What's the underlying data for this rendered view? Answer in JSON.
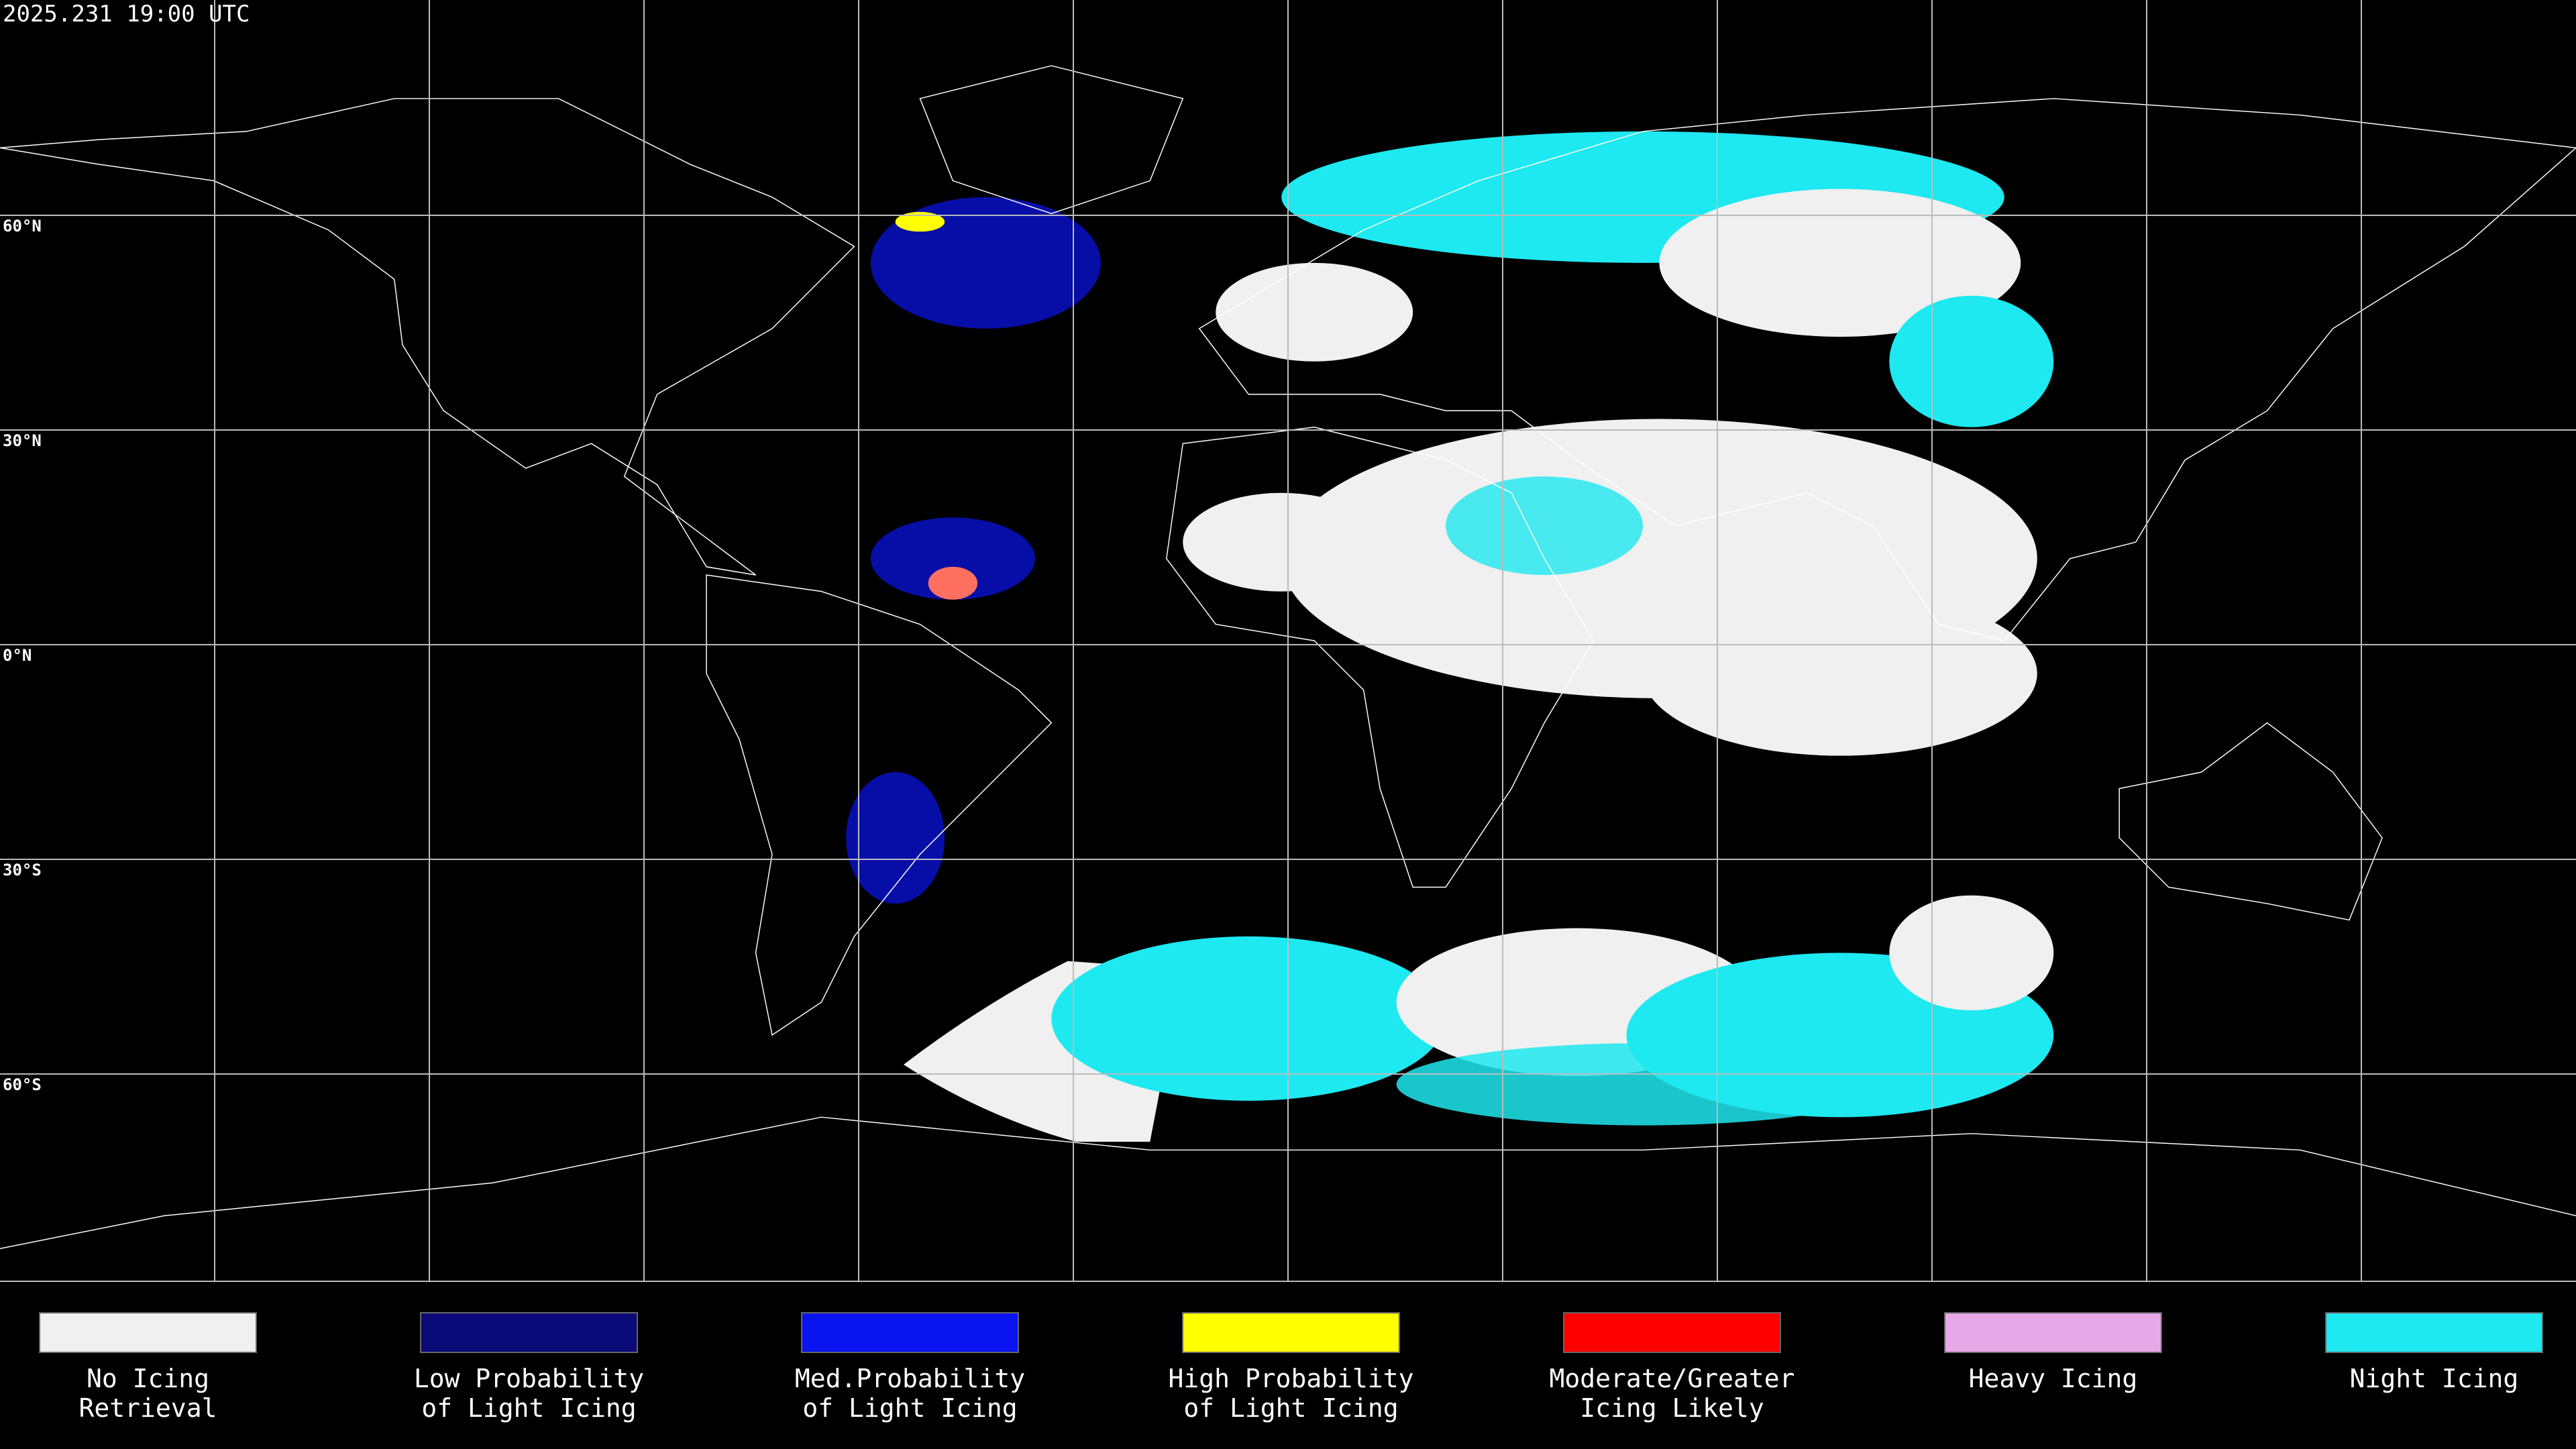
{
  "timestamp": "2025.231 19:00 UTC",
  "latitude_labels": [
    "60°N",
    "30°N",
    "0°N",
    "30°S",
    "60°S"
  ],
  "legend": [
    {
      "lines": [
        "No Icing",
        "Retrieval"
      ],
      "color": "#f0f0f0"
    },
    {
      "lines": [
        "Low Probability",
        "of Light Icing"
      ],
      "color": "#0a0a78"
    },
    {
      "lines": [
        "Med.Probability",
        "of Light Icing"
      ],
      "color": "#0a14f0"
    },
    {
      "lines": [
        "High Probability",
        "of Light Icing"
      ],
      "color": "#ffff00"
    },
    {
      "lines": [
        "Moderate/Greater",
        "Icing Likely"
      ],
      "color": "#ff0000"
    },
    {
      "lines": [
        "Heavy Icing"
      ],
      "color": "#e6a8e6"
    },
    {
      "lines": [
        "Night Icing"
      ],
      "color": "#1ee8f0"
    }
  ]
}
